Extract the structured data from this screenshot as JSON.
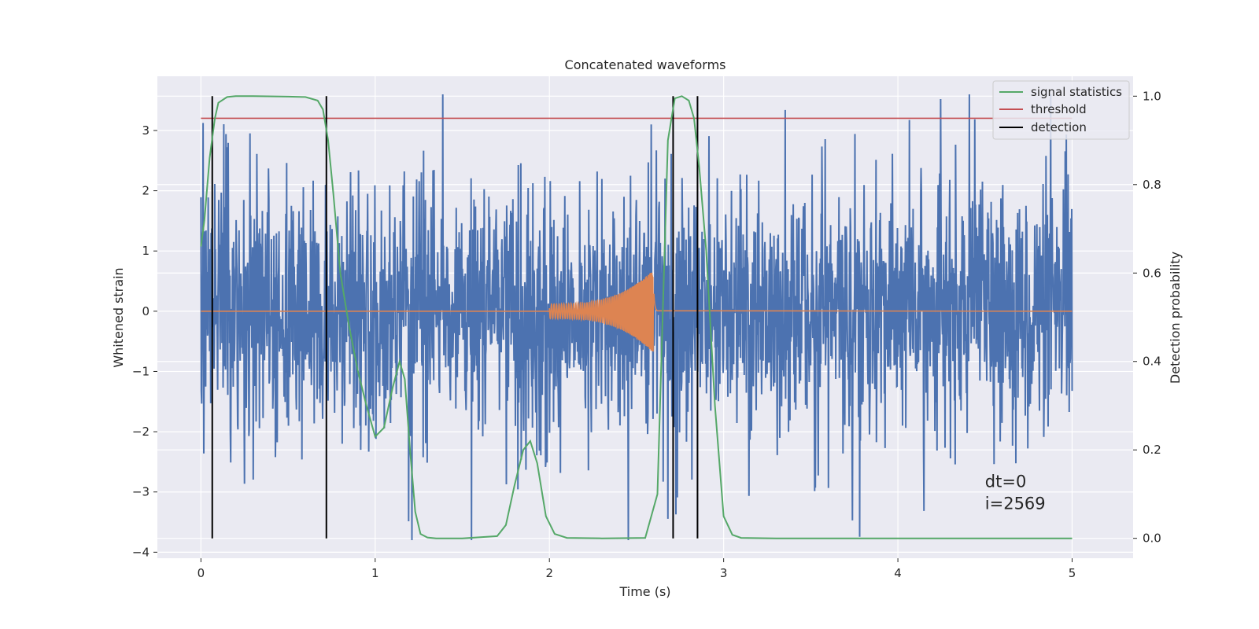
{
  "chart_data": {
    "type": "line",
    "title": "Concatenated waveforms",
    "xlabel": "Time (s)",
    "ylabel": "Whitened strain",
    "ylabel_right": "Detection probability",
    "xlim": [
      -0.25,
      5.35
    ],
    "ylim": [
      -4.1,
      3.9
    ],
    "ylim_right": [
      -0.045,
      1.045
    ],
    "x_ticks": [
      0,
      1,
      2,
      3,
      4,
      5
    ],
    "y_ticks": [
      -4,
      -3,
      -2,
      -1,
      0,
      1,
      2,
      3
    ],
    "y_ticks_right": [
      0.0,
      0.2,
      0.4,
      0.6,
      0.8,
      1.0
    ],
    "grid": true,
    "legend_position": "top-right",
    "legend": [
      {
        "label": "signal statistics",
        "color": "#55a868"
      },
      {
        "label": "threshold",
        "color": "#c44e52"
      },
      {
        "label": "detection",
        "color": "#000000"
      }
    ],
    "colors": {
      "strain": "#4c72b0",
      "waveform": "#dd8452",
      "signal": "#55a868",
      "threshold": "#c44e52",
      "detection": "#000000",
      "background": "#eaeaf2",
      "grid": "#ffffff"
    },
    "noise": {
      "x_range": [
        0,
        5
      ],
      "samples": 2400,
      "core_amplitude": 0.8,
      "max_amplitude": 3.6,
      "min_amplitude": -3.8
    },
    "chirp": {
      "x_start": 2.0,
      "x_end": 2.62,
      "start_amplitude": 0.12,
      "peak_amplitude": 0.7,
      "peak_time": 2.6
    },
    "threshold": {
      "y": 0.95,
      "x_range": [
        0,
        5
      ]
    },
    "detections": [
      0.065,
      0.72,
      2.71,
      2.85
    ],
    "signal_statistics": {
      "x": [
        0,
        0.02,
        0.05,
        0.08,
        0.1,
        0.15,
        0.2,
        0.3,
        0.5,
        0.6,
        0.67,
        0.7,
        0.73,
        0.76,
        0.8,
        0.85,
        0.9,
        0.95,
        1.0,
        1.05,
        1.1,
        1.14,
        1.17,
        1.2,
        1.23,
        1.26,
        1.3,
        1.35,
        1.5,
        1.7,
        1.75,
        1.8,
        1.85,
        1.89,
        1.93,
        1.98,
        2.03,
        2.1,
        2.3,
        2.55,
        2.62,
        2.65,
        2.68,
        2.72,
        2.76,
        2.8,
        2.83,
        2.86,
        2.9,
        2.95,
        3.0,
        3.05,
        3.1,
        3.3,
        5.0
      ],
      "y": [
        0.66,
        0.72,
        0.86,
        0.95,
        0.985,
        0.998,
        1.0,
        1.0,
        0.999,
        0.998,
        0.99,
        0.97,
        0.9,
        0.78,
        0.6,
        0.48,
        0.38,
        0.3,
        0.23,
        0.25,
        0.34,
        0.4,
        0.36,
        0.2,
        0.06,
        0.01,
        0.002,
        0.0,
        0.0,
        0.005,
        0.03,
        0.12,
        0.2,
        0.22,
        0.17,
        0.05,
        0.01,
        0.001,
        0.0,
        0.001,
        0.1,
        0.5,
        0.9,
        0.995,
        1.0,
        0.99,
        0.95,
        0.84,
        0.65,
        0.3,
        0.05,
        0.008,
        0.001,
        0.0,
        0.0
      ]
    },
    "annotation": {
      "line1": "dt=0",
      "line2": "i=2569",
      "x": 4.5,
      "y": -3.1
    }
  }
}
